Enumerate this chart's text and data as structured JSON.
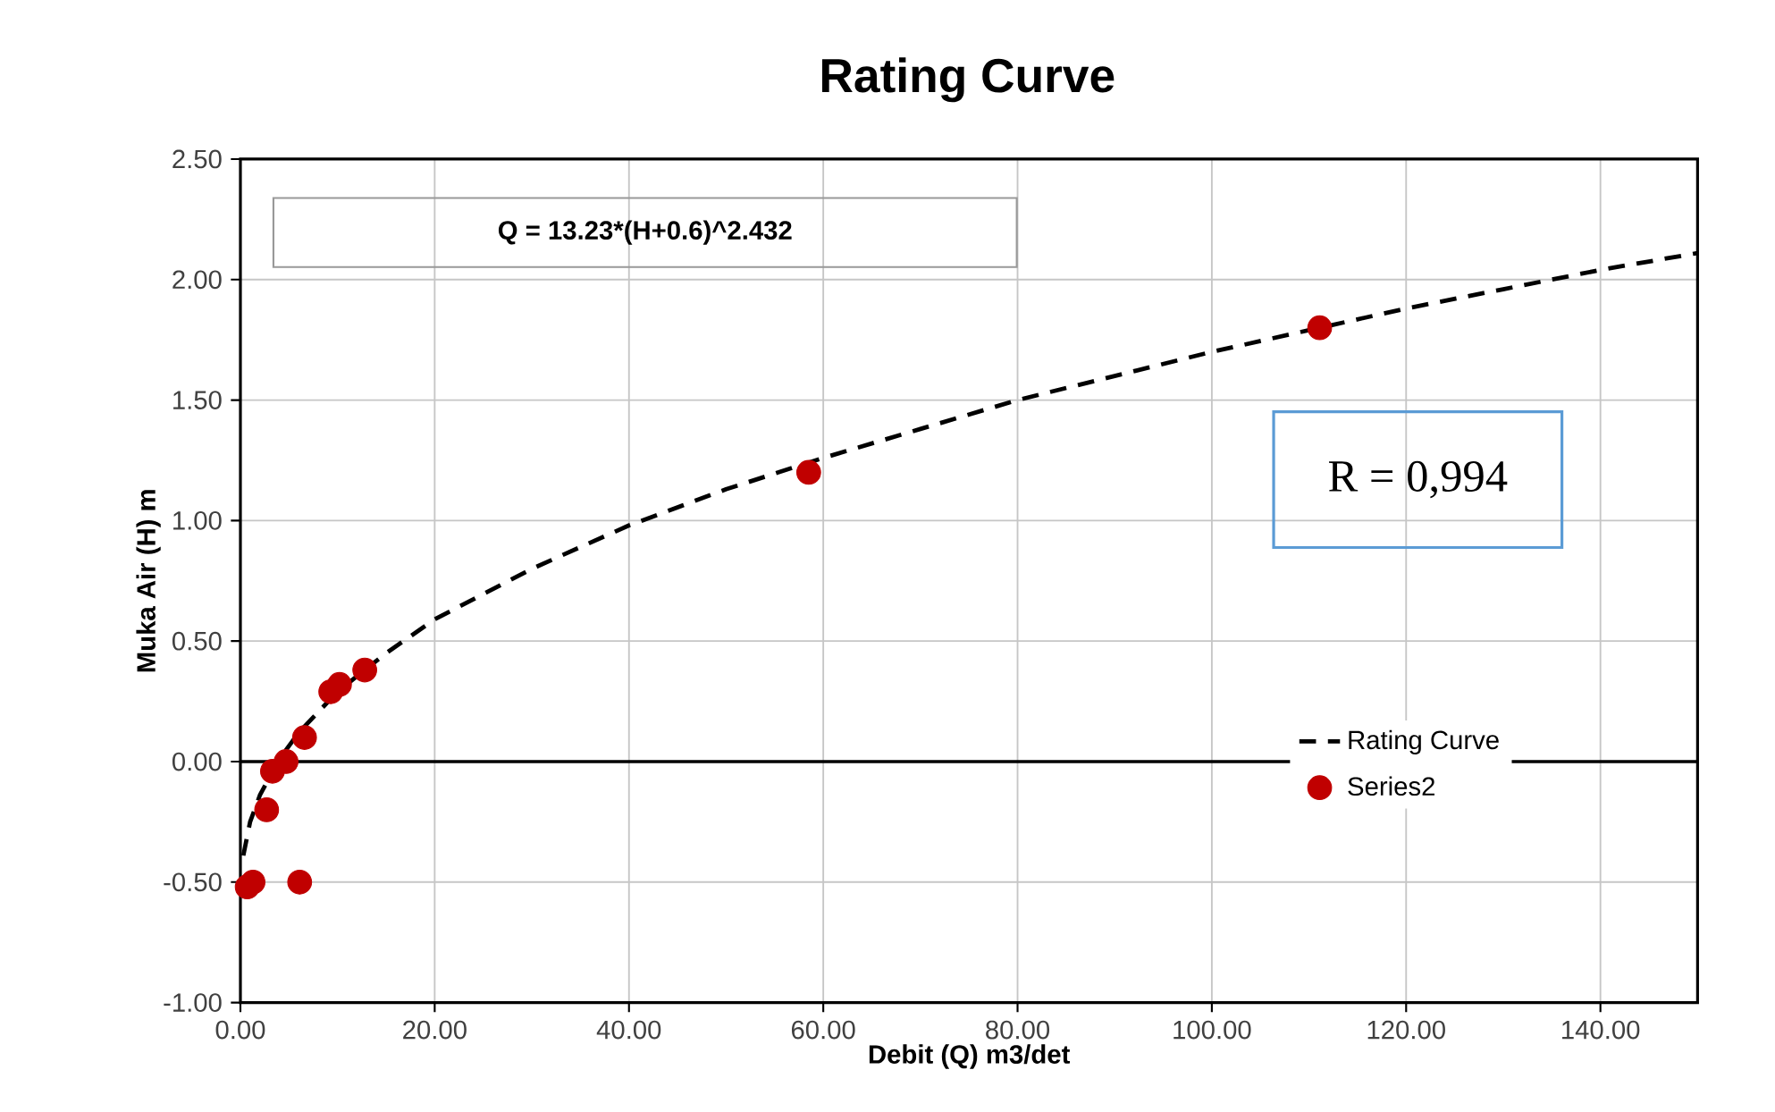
{
  "chart_data": {
    "type": "scatter",
    "title": "Rating Curve",
    "xlabel": "Debit (Q) m3/det",
    "ylabel": "Muka Air (H) m",
    "xlim": [
      0,
      150
    ],
    "ylim": [
      -1,
      2.5
    ],
    "xticks": [
      {
        "value": 0,
        "label": "0.00"
      },
      {
        "value": 20,
        "label": "20.00"
      },
      {
        "value": 40,
        "label": "40.00"
      },
      {
        "value": 60,
        "label": "60.00"
      },
      {
        "value": 80,
        "label": "80.00"
      },
      {
        "value": 100,
        "label": "100.00"
      },
      {
        "value": 120,
        "label": "120.00"
      },
      {
        "value": 140,
        "label": "140.00"
      }
    ],
    "yticks": [
      {
        "value": -1,
        "label": "-1.00"
      },
      {
        "value": -0.5,
        "label": "-0.50"
      },
      {
        "value": 0,
        "label": "0.00"
      },
      {
        "value": 0.5,
        "label": "0.50"
      },
      {
        "value": 1,
        "label": "1.00"
      },
      {
        "value": 1.5,
        "label": "1.50"
      },
      {
        "value": 2,
        "label": "2.00"
      },
      {
        "value": 2.5,
        "label": "2.50"
      }
    ],
    "grid": true,
    "legend": "right",
    "ref_lines": [
      {
        "axis": "y",
        "value": 0
      }
    ],
    "annotations": [
      "Q = 13.23*(H+0.6)^2.432",
      "R = 0,994"
    ],
    "series": [
      {
        "name": "Rating Curve",
        "type": "line",
        "color": "#000000",
        "line_style": "dashed",
        "marker": "none",
        "x": [
          0.3,
          1,
          2,
          4,
          6,
          10,
          15,
          20,
          30,
          40,
          50,
          60,
          70,
          80,
          90,
          100,
          110,
          120,
          130,
          140,
          150
        ],
        "values": [
          -0.39,
          -0.25,
          -0.14,
          0.01,
          0.12,
          0.29,
          0.45,
          0.59,
          0.8,
          0.98,
          1.13,
          1.26,
          1.38,
          1.5,
          1.6,
          1.7,
          1.79,
          1.88,
          1.96,
          2.04,
          2.11
        ]
      },
      {
        "name": "Series2",
        "color": "#c00000",
        "marker": "circle",
        "x": [
          0.7,
          1.3,
          6.1,
          2.7,
          3.3,
          4.7,
          6.6,
          9.3,
          10.2,
          12.8,
          58.5,
          111.1
        ],
        "values": [
          -0.52,
          -0.5,
          -0.5,
          -0.2,
          -0.04,
          0.0,
          0.1,
          0.29,
          0.32,
          0.38,
          1.2,
          1.8
        ]
      }
    ]
  }
}
